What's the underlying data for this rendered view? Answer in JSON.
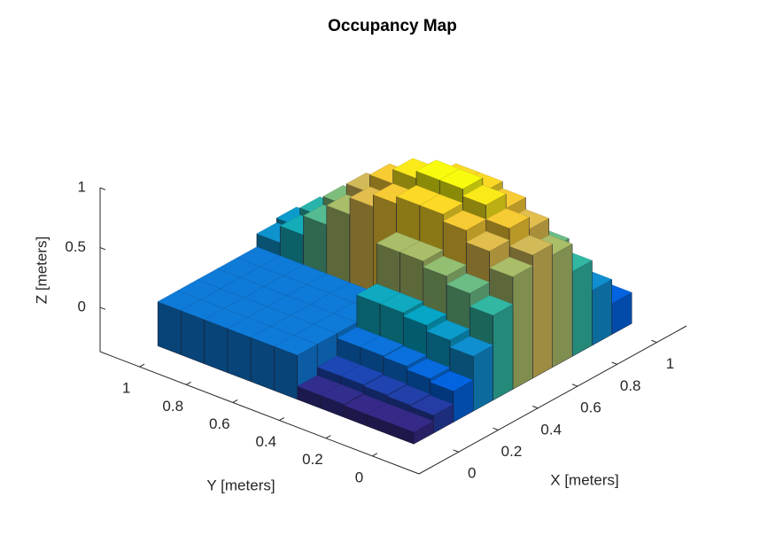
{
  "chart_data": {
    "type": "voxel-surface",
    "title": "Occupancy Map",
    "xlabel": "X [meters]",
    "ylabel": "Y [meters]",
    "zlabel": "Z [meters]",
    "x": [
      0,
      0.1,
      0.2,
      0.3,
      0.4,
      0.5,
      0.6,
      0.7,
      0.8,
      0.9,
      1
    ],
    "y": [
      0,
      0.1,
      0.2,
      0.3,
      0.4,
      0.5,
      0.6,
      0.7,
      0.8,
      0.9,
      1
    ],
    "z": [
      [
        -0.27,
        -0.22,
        -0.11,
        0.09,
        0.34,
        0.57,
        0.66,
        0.57,
        0.34,
        0.09,
        -0.11
      ],
      [
        -0.27,
        -0.21,
        -0.08,
        0.15,
        0.45,
        0.71,
        0.81,
        0.71,
        0.45,
        0.15,
        -0.08
      ],
      [
        -0.27,
        -0.2,
        -0.05,
        0.2,
        0.52,
        0.81,
        0.93,
        0.81,
        0.52,
        0.2,
        -0.05
      ],
      [
        -0.26,
        -0.19,
        -0.04,
        0.23,
        0.57,
        0.87,
        0.99,
        0.87,
        0.57,
        0.23,
        -0.04
      ],
      [
        -0.26,
        -0.19,
        -0.04,
        0.23,
        0.57,
        0.87,
        0.99,
        0.87,
        0.57,
        0.23,
        -0.04
      ],
      [
        0,
        0,
        0,
        0,
        0,
        0.81,
        0.93,
        0.81,
        0.52,
        0.2,
        -0.05
      ],
      [
        0,
        0,
        0,
        0,
        0,
        0.71,
        0.81,
        0.71,
        0.45,
        0.15,
        -0.08
      ],
      [
        0,
        0,
        0,
        0,
        0,
        0.57,
        0.66,
        0.57,
        0.34,
        0.09,
        -0.11
      ],
      [
        0,
        0,
        0,
        0,
        0,
        0.41,
        0.48,
        0.41,
        0.23,
        0.02,
        -0.14
      ],
      [
        0,
        0,
        0,
        0,
        0,
        0.25,
        0.31,
        0.25,
        0.11,
        -0.05,
        -0.18
      ],
      [
        0,
        0,
        0,
        0,
        0,
        0.11,
        0.15,
        0.11,
        0,
        -0.12,
        -0.21
      ]
    ],
    "cell": 0.1,
    "xlim": [
      -0.2,
      1.15
    ],
    "ylim": [
      -0.2,
      1.17
    ],
    "zlim": [
      -0.37,
      1
    ],
    "xticks": [
      0,
      0.2,
      0.4,
      0.6,
      0.8,
      1
    ],
    "yticks": [
      0,
      0.2,
      0.4,
      0.6,
      0.8,
      1
    ],
    "zticks": [
      0,
      0.5,
      1
    ],
    "colormap": [
      "#352a87",
      "#0363e1",
      "#1485d4",
      "#06a7c6",
      "#38b99e",
      "#92bf73",
      "#d9ba56",
      "#fcce2e",
      "#f9fb0e"
    ]
  }
}
